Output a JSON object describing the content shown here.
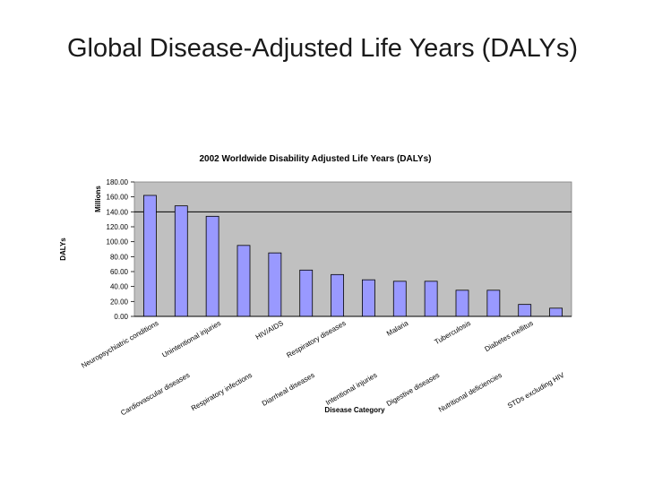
{
  "slide": {
    "title": "Global Disease-Adjusted Life Years (DALYs)"
  },
  "chart_data": {
    "type": "bar",
    "title": "2002 Worldwide Disability Adjusted Life Years (DALYs)",
    "xlabel": "Disease Category",
    "ylabel": "DALYs",
    "unit_label": "Millions",
    "ylim": [
      0,
      180
    ],
    "yticks": [
      "0.00",
      "20.00",
      "40.00",
      "60.00",
      "80.00",
      "100.00",
      "120.00",
      "140.00",
      "160.00",
      "180.00"
    ],
    "reference_line": 140,
    "grid": false,
    "legend": "none",
    "categories": [
      "Neuropsychiatric conditions",
      "Cardiovascular diseases",
      "Unintentional injuries",
      "Respiratory infections",
      "HIV/AIDS",
      "Diarrheal diseases",
      "Respiratory diseases",
      "Intentional injuries",
      "Malaria",
      "Digestive diseases",
      "Tuberculosis",
      "Nutritional deficiencies",
      "Diabetes mellitus",
      "STDs excluding HIV"
    ],
    "values": [
      162,
      148,
      134,
      95,
      85,
      62,
      56,
      49,
      47,
      47,
      35,
      35,
      16,
      11
    ],
    "colors": {
      "plot_bg": "#c0c0c0",
      "bar_fill": "#9999ff",
      "bar_stroke": "#000000",
      "text": "#000000"
    }
  }
}
